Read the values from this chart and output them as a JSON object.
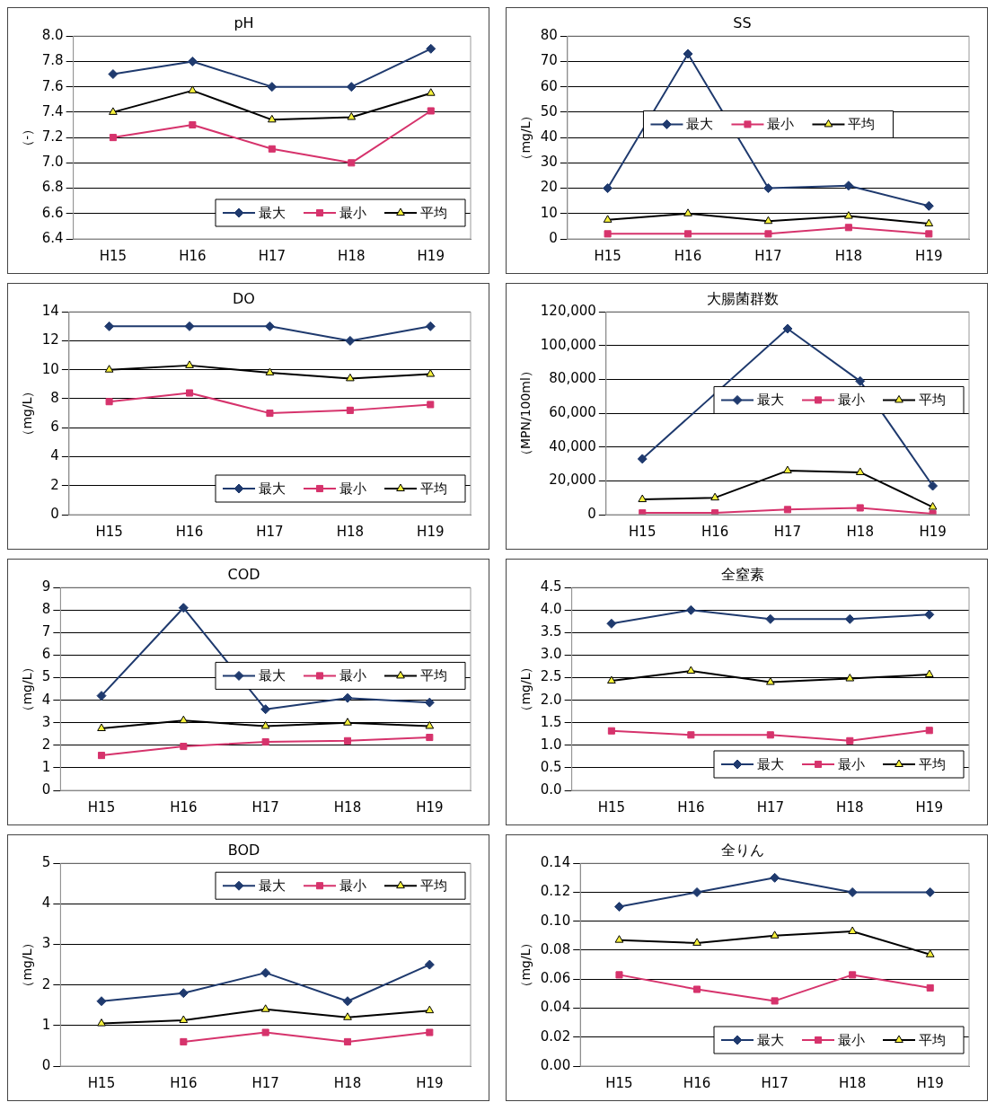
{
  "chart_data": [
    {
      "type": "line",
      "title": "pH",
      "ylabel": "（-）",
      "categories": [
        "H15",
        "H16",
        "H17",
        "H18",
        "H19"
      ],
      "grid": "y",
      "legend": "bottom right",
      "ylim": [
        6.4,
        8.0
      ],
      "yticks": [
        6.4,
        6.6,
        6.8,
        {
          "value": 7,
          "label": "7.0"
        },
        7.2,
        7.4,
        7.6,
        7.8,
        {
          "value": 8,
          "label": "8.0"
        }
      ],
      "series": [
        {
          "name": "最大",
          "color": "#1f3a6e",
          "marker": "diamond",
          "values": [
            7.7,
            7.8,
            7.6,
            7.6,
            7.9
          ]
        },
        {
          "name": "最小",
          "color": "#d6336c",
          "marker": "square",
          "values": [
            7.2,
            7.3,
            7.11,
            7.0,
            7.41
          ]
        },
        {
          "name": "平均",
          "color": "#000000",
          "marker": "triangle",
          "values": [
            7.4,
            7.57,
            7.34,
            7.36,
            7.55
          ]
        }
      ]
    },
    {
      "type": "line",
      "title": "SS",
      "ylabel": "（mg/L）",
      "categories": [
        "H15",
        "H16",
        "H17",
        "H18",
        "H19"
      ],
      "grid": "y",
      "legend": "center",
      "ylim": [
        0,
        80
      ],
      "yticks": [
        0,
        10,
        20,
        30,
        40,
        50,
        60,
        70,
        80
      ],
      "series": [
        {
          "name": "最大",
          "color": "#1f3a6e",
          "marker": "diamond",
          "values": [
            20,
            73,
            20,
            21,
            13
          ]
        },
        {
          "name": "最小",
          "color": "#d6336c",
          "marker": "square",
          "values": [
            2,
            2,
            2,
            4.5,
            2
          ]
        },
        {
          "name": "平均",
          "color": "#000000",
          "marker": "triangle",
          "values": [
            7.5,
            10,
            7,
            9,
            6
          ]
        }
      ]
    },
    {
      "type": "line",
      "title": "DO",
      "ylabel": "（mg/L）",
      "categories": [
        "H15",
        "H16",
        "H17",
        "H18",
        "H19"
      ],
      "grid": "y",
      "legend": "bottom right",
      "ylim": [
        0,
        14
      ],
      "yticks": [
        0,
        2,
        4,
        6,
        8,
        10,
        12,
        14
      ],
      "series": [
        {
          "name": "最大",
          "color": "#1f3a6e",
          "marker": "diamond",
          "values": [
            13,
            13,
            13,
            12,
            13
          ]
        },
        {
          "name": "最小",
          "color": "#d6336c",
          "marker": "square",
          "values": [
            7.8,
            8.4,
            7.0,
            7.2,
            7.6
          ]
        },
        {
          "name": "平均",
          "color": "#000000",
          "marker": "triangle",
          "values": [
            10,
            10.3,
            9.8,
            9.4,
            9.7
          ]
        }
      ]
    },
    {
      "type": "line",
      "title": "大腸菌群数",
      "ylabel": "（MPN/100ml）",
      "categories": [
        "H15",
        "H16",
        "H17",
        "H18",
        "H19"
      ],
      "grid": "y",
      "legend": "center right",
      "ylim": [
        0,
        120000
      ],
      "yticks": [
        0,
        {
          "value": 20000,
          "label": "20,000"
        },
        {
          "value": 40000,
          "label": "40,000"
        },
        {
          "value": 60000,
          "label": "60,000"
        },
        {
          "value": 80000,
          "label": "80,000"
        },
        {
          "value": 100000,
          "label": "100,000"
        },
        {
          "value": 120000,
          "label": "120,000"
        }
      ],
      "series": [
        {
          "name": "最大",
          "color": "#1f3a6e",
          "marker": "diamond",
          "values": [
            33000,
            null,
            110000,
            79000,
            17000
          ]
        },
        {
          "name": "最小",
          "color": "#d6336c",
          "marker": "square",
          "values": [
            1000,
            1000,
            3000,
            4000,
            500
          ]
        },
        {
          "name": "平均",
          "color": "#000000",
          "marker": "triangle",
          "values": [
            9000,
            10000,
            26000,
            25000,
            4500
          ]
        }
      ]
    },
    {
      "type": "line",
      "title": "COD",
      "ylabel": "（mg/L）",
      "categories": [
        "H15",
        "H16",
        "H17",
        "H18",
        "H19"
      ],
      "grid": "y",
      "legend": "center right",
      "ylim": [
        0,
        9
      ],
      "yticks": [
        0,
        1,
        2,
        3,
        4,
        5,
        6,
        7,
        8,
        9
      ],
      "series": [
        {
          "name": "最大",
          "color": "#1f3a6e",
          "marker": "diamond",
          "values": [
            4.2,
            8.1,
            3.6,
            4.1,
            3.9
          ]
        },
        {
          "name": "最小",
          "color": "#d6336c",
          "marker": "square",
          "values": [
            1.55,
            1.95,
            2.15,
            2.2,
            2.35
          ]
        },
        {
          "name": "平均",
          "color": "#000000",
          "marker": "triangle",
          "values": [
            2.75,
            3.1,
            2.85,
            3.0,
            2.85
          ]
        }
      ]
    },
    {
      "type": "line",
      "title": "全窒素",
      "ylabel": "（mg/L）",
      "categories": [
        "H15",
        "H16",
        "H17",
        "H18",
        "H19"
      ],
      "grid": "y",
      "legend": "bottom right",
      "ylim": [
        0,
        4.5
      ],
      "yticks": [
        {
          "value": 0,
          "label": "0.0"
        },
        0.5,
        {
          "value": 1,
          "label": "1.0"
        },
        1.5,
        {
          "value": 2,
          "label": "2.0"
        },
        2.5,
        {
          "value": 3,
          "label": "3.0"
        },
        3.5,
        {
          "value": 4,
          "label": "4.0"
        },
        4.5
      ],
      "series": [
        {
          "name": "最大",
          "color": "#1f3a6e",
          "marker": "diamond",
          "values": [
            3.7,
            4.0,
            3.8,
            3.8,
            3.9
          ]
        },
        {
          "name": "最小",
          "color": "#d6336c",
          "marker": "square",
          "values": [
            1.32,
            1.23,
            1.23,
            1.1,
            1.33
          ]
        },
        {
          "name": "平均",
          "color": "#000000",
          "marker": "triangle",
          "values": [
            2.43,
            2.65,
            2.4,
            2.48,
            2.57
          ]
        }
      ]
    },
    {
      "type": "line",
      "title": "BOD",
      "ylabel": "（mg/L）",
      "categories": [
        "H15",
        "H16",
        "H17",
        "H18",
        "H19"
      ],
      "grid": "y",
      "legend": "top right",
      "ylim": [
        0,
        5
      ],
      "yticks": [
        0,
        1,
        2,
        3,
        4,
        5
      ],
      "series": [
        {
          "name": "最大",
          "color": "#1f3a6e",
          "marker": "diamond",
          "values": [
            1.6,
            1.8,
            2.3,
            1.6,
            2.5
          ]
        },
        {
          "name": "最小",
          "color": "#d6336c",
          "marker": "square",
          "values": [
            null,
            0.6,
            0.83,
            0.6,
            0.83
          ]
        },
        {
          "name": "平均",
          "color": "#000000",
          "marker": "triangle",
          "values": [
            1.05,
            1.13,
            1.4,
            1.2,
            1.37
          ]
        }
      ]
    },
    {
      "type": "line",
      "title": "全りん",
      "ylabel": "（mg/L）",
      "categories": [
        "H15",
        "H16",
        "H17",
        "H18",
        "H19"
      ],
      "grid": "y",
      "legend": "bottom right",
      "ylim": [
        0,
        0.14
      ],
      "yticks": [
        {
          "value": 0,
          "label": "0.00"
        },
        0.02,
        0.04,
        0.06,
        0.08,
        {
          "value": 0.1,
          "label": "0.10"
        },
        0.12,
        0.14
      ],
      "series": [
        {
          "name": "最大",
          "color": "#1f3a6e",
          "marker": "diamond",
          "values": [
            0.11,
            0.12,
            0.13,
            0.12,
            0.12
          ]
        },
        {
          "name": "最小",
          "color": "#d6336c",
          "marker": "square",
          "values": [
            0.063,
            0.053,
            0.045,
            0.063,
            0.054
          ]
        },
        {
          "name": "平均",
          "color": "#000000",
          "marker": "triangle",
          "values": [
            0.087,
            0.085,
            0.09,
            0.093,
            0.077
          ]
        }
      ]
    }
  ]
}
